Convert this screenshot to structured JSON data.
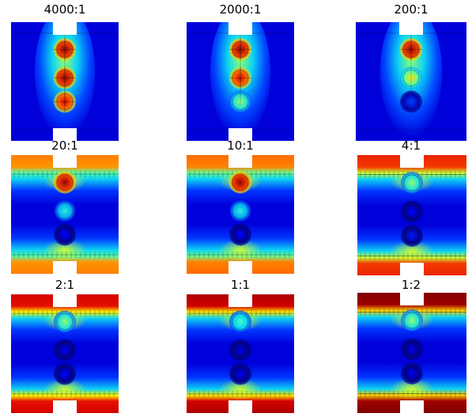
{
  "panels": [
    {
      "label": "4000:1",
      "mode": "fluxtop",
      "notch_top": true,
      "notch_bottom": true,
      "circles": [
        {
          "v": 0.98
        },
        {
          "v": 0.98
        },
        {
          "v": 0.92
        }
      ]
    },
    {
      "label": "2000:1",
      "mode": "fluxtop",
      "notch_top": true,
      "notch_bottom": true,
      "circles": [
        {
          "v": 0.98
        },
        {
          "v": 0.92
        },
        {
          "v": 0.55
        }
      ]
    },
    {
      "label": "200:1",
      "mode": "fluxtop",
      "notch_top": true,
      "notch_bottom": false,
      "circles": [
        {
          "v": 0.98
        },
        {
          "v": 0.65
        },
        {
          "v": 0.2
        }
      ]
    },
    {
      "label": "20:1",
      "mode": "bands",
      "band_level": 0.7,
      "circles": [
        {
          "v": 0.98
        },
        {
          "v": 0.45
        },
        {
          "v": 0.12
        }
      ]
    },
    {
      "label": "10:1",
      "mode": "bands",
      "band_level": 0.72,
      "circles": [
        {
          "v": 0.98
        },
        {
          "v": 0.45
        },
        {
          "v": 0.12
        }
      ]
    },
    {
      "label": "4:1",
      "mode": "bands",
      "band_level": 0.8,
      "circles": [
        {
          "v": 0.55
        },
        {
          "v": 0.12
        },
        {
          "v": 0.15
        }
      ]
    },
    {
      "label": "2:1",
      "mode": "bands",
      "band_level": 0.85,
      "circles": [
        {
          "v": 0.55
        },
        {
          "v": 0.1
        },
        {
          "v": 0.12
        }
      ]
    },
    {
      "label": "1:1",
      "mode": "bands",
      "band_level": 0.88,
      "circles": [
        {
          "v": 0.5
        },
        {
          "v": 0.08
        },
        {
          "v": 0.1
        }
      ]
    },
    {
      "label": "1:2",
      "mode": "bands",
      "band_level": 0.92,
      "circles": [
        {
          "v": 0.55
        },
        {
          "v": 0.08
        },
        {
          "v": 0.1
        }
      ]
    }
  ]
}
